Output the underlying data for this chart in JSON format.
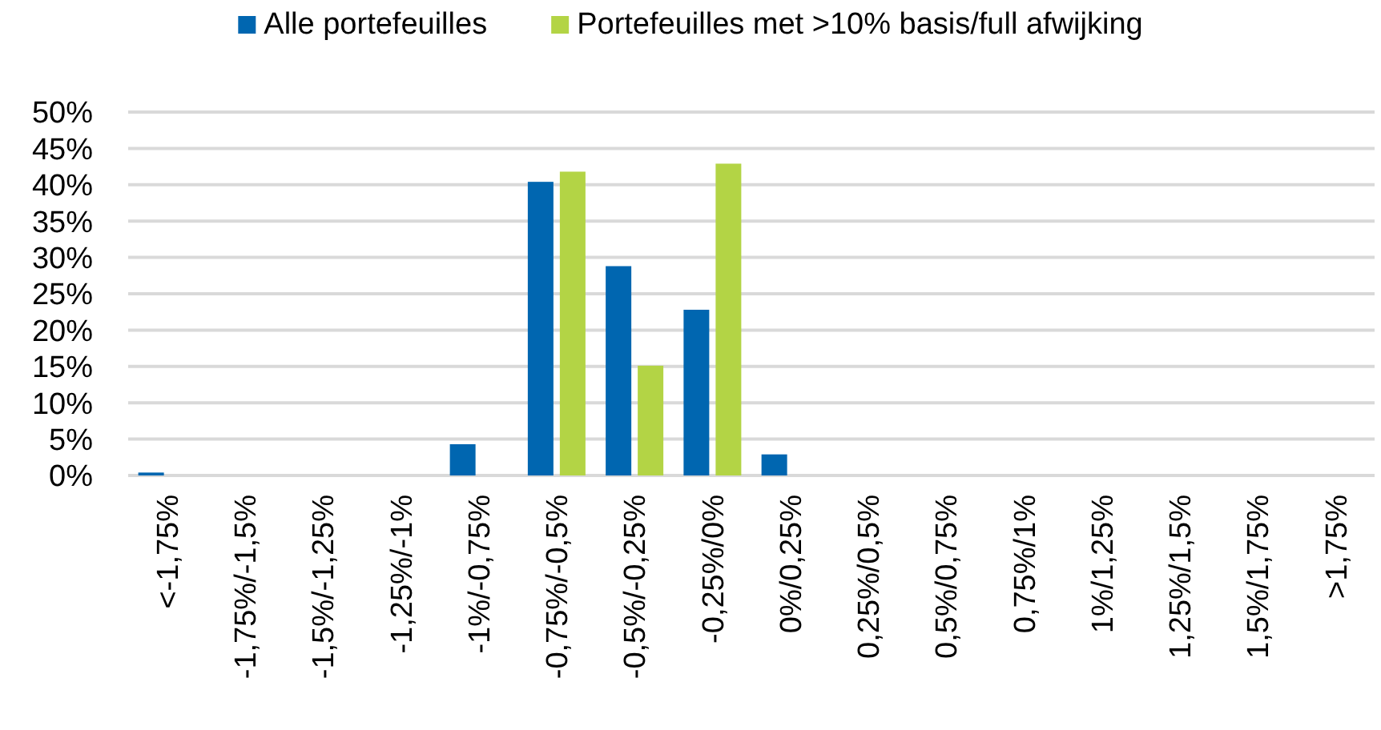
{
  "chart_data": {
    "type": "bar",
    "categories": [
      "<-1,75%",
      "-1,75%/-1,5%",
      "-1,5%/-1,25%",
      "-1,25%/-1%",
      "-1%/-0,75%",
      "-0,75%/-0,5%",
      "-0,5%/-0,25%",
      "-0,25%/0%",
      "0%/0,25%",
      "0,25%/0,5%",
      "0,5%/0,75%",
      "0,75%/1%",
      "1%/1,25%",
      "1,25%/1,5%",
      "1,5%/1,75%",
      ">1,75%"
    ],
    "series": [
      {
        "name": "Alle portefeuilles",
        "color": "#0066b0",
        "values": [
          0.4,
          0,
          0,
          0,
          4.3,
          40.4,
          28.8,
          22.8,
          2.9,
          0,
          0,
          0,
          0,
          0,
          0,
          0
        ]
      },
      {
        "name": "Portefeuilles met >10% basis/full afwijking",
        "color": "#b3d445",
        "values": [
          0,
          0,
          0,
          0,
          0,
          41.8,
          15.1,
          42.9,
          0,
          0,
          0,
          0,
          0,
          0,
          0,
          0
        ]
      }
    ],
    "ylim": [
      0,
      50
    ],
    "yticks": [
      {
        "value": 0,
        "label": "0%"
      },
      {
        "value": 5,
        "label": "5%"
      },
      {
        "value": 10,
        "label": "10%"
      },
      {
        "value": 15,
        "label": "15%"
      },
      {
        "value": 20,
        "label": "20%"
      },
      {
        "value": 25,
        "label": "25%"
      },
      {
        "value": 30,
        "label": "30%"
      },
      {
        "value": 35,
        "label": "35%"
      },
      {
        "value": 40,
        "label": "40%"
      },
      {
        "value": 45,
        "label": "45%"
      },
      {
        "value": 50,
        "label": "50%"
      }
    ],
    "grid": "y",
    "legend": "top"
  }
}
